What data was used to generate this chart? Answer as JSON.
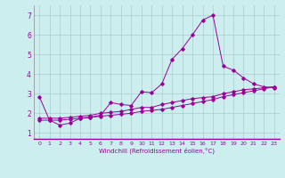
{
  "xlabel": "Windchill (Refroidissement éolien,°C)",
  "background_color": "#cceeee",
  "grid_color": "#aacccc",
  "line_color": "#990099",
  "xlim": [
    -0.5,
    23.5
  ],
  "ylim": [
    0.7,
    7.5
  ],
  "xticks": [
    0,
    1,
    2,
    3,
    4,
    5,
    6,
    7,
    8,
    9,
    10,
    11,
    12,
    13,
    14,
    15,
    16,
    17,
    18,
    19,
    20,
    21,
    22,
    23
  ],
  "yticks": [
    1,
    2,
    3,
    4,
    5,
    6,
    7
  ],
  "series1_x": [
    0,
    1,
    2,
    3,
    4,
    5,
    6,
    7,
    8,
    9,
    10,
    11,
    12,
    13,
    14,
    15,
    16,
    17,
    18,
    19,
    20,
    21,
    22,
    23
  ],
  "series1_y": [
    2.85,
    1.65,
    1.4,
    1.5,
    1.75,
    1.8,
    1.9,
    2.55,
    2.45,
    2.4,
    3.1,
    3.05,
    3.5,
    4.75,
    5.3,
    6.0,
    6.75,
    7.0,
    4.4,
    4.2,
    3.8,
    3.5,
    3.35,
    3.3
  ],
  "series2_x": [
    0,
    1,
    2,
    3,
    4,
    5,
    6,
    7,
    8,
    9,
    10,
    11,
    12,
    13,
    14,
    15,
    16,
    17,
    18,
    19,
    20,
    21,
    22,
    23
  ],
  "series2_y": [
    1.75,
    1.75,
    1.75,
    1.8,
    1.85,
    1.9,
    2.0,
    2.05,
    2.1,
    2.2,
    2.3,
    2.3,
    2.45,
    2.55,
    2.65,
    2.75,
    2.8,
    2.85,
    3.0,
    3.1,
    3.2,
    3.25,
    3.3,
    3.35
  ],
  "series3_x": [
    0,
    1,
    2,
    3,
    4,
    5,
    6,
    7,
    8,
    9,
    10,
    11,
    12,
    13,
    14,
    15,
    16,
    17,
    18,
    19,
    20,
    21,
    22,
    23
  ],
  "series3_y": [
    1.65,
    1.65,
    1.65,
    1.7,
    1.75,
    1.8,
    1.85,
    1.9,
    1.95,
    2.0,
    2.1,
    2.15,
    2.2,
    2.3,
    2.4,
    2.5,
    2.6,
    2.7,
    2.85,
    2.95,
    3.05,
    3.15,
    3.25,
    3.35
  ]
}
